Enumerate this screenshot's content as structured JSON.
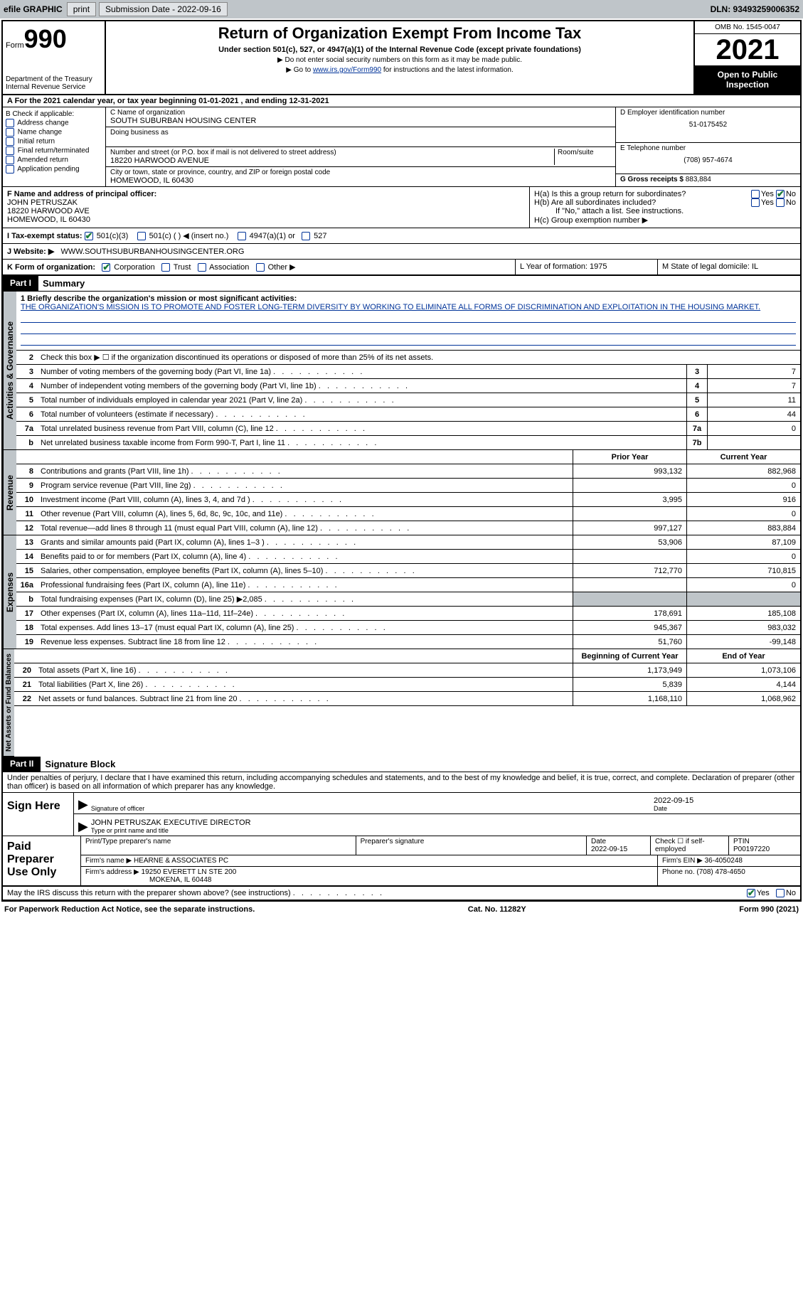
{
  "topbar": {
    "efile": "efile GRAPHIC",
    "print": "print",
    "sub_label": "Submission Date - 2022-09-16",
    "dln": "DLN: 93493259006352"
  },
  "header": {
    "form_label": "Form",
    "form_num": "990",
    "dept": "Department of the Treasury\nInternal Revenue Service",
    "title": "Return of Organization Exempt From Income Tax",
    "subtitle": "Under section 501(c), 527, or 4947(a)(1) of the Internal Revenue Code (except private foundations)",
    "note1": "▶ Do not enter social security numbers on this form as it may be made public.",
    "note2_pre": "▶ Go to ",
    "note2_link": "www.irs.gov/Form990",
    "note2_post": " for instructions and the latest information.",
    "omb": "OMB No. 1545-0047",
    "year": "2021",
    "inspection": "Open to Public Inspection"
  },
  "row_a": "A For the 2021 calendar year, or tax year beginning 01-01-2021   , and ending 12-31-2021",
  "col_b": {
    "label": "B Check if applicable:",
    "items": [
      "Address change",
      "Name change",
      "Initial return",
      "Final return/terminated",
      "Amended return",
      "Application pending"
    ]
  },
  "col_c": {
    "name_label": "C Name of organization",
    "name": "SOUTH SUBURBAN HOUSING CENTER",
    "dba_label": "Doing business as",
    "street_label": "Number and street (or P.O. box if mail is not delivered to street address)",
    "room_label": "Room/suite",
    "street": "18220 HARWOOD AVENUE",
    "city_label": "City or town, state or province, country, and ZIP or foreign postal code",
    "city": "HOMEWOOD, IL  60430"
  },
  "col_d": {
    "ein_label": "D Employer identification number",
    "ein": "51-0175452",
    "phone_label": "E Telephone number",
    "phone": "(708) 957-4674",
    "gross_label": "G Gross receipts $",
    "gross": "883,884"
  },
  "row_f": {
    "label": "F Name and address of principal officer:",
    "name": "JOHN PETRUSZAK",
    "addr1": "18220 HARWOOD AVE",
    "addr2": "HOMEWOOD, IL  60430"
  },
  "row_h": {
    "a": "H(a)  Is this a group return for subordinates?",
    "b": "H(b)  Are all subordinates included?",
    "b_note": "If \"No,\" attach a list. See instructions.",
    "c": "H(c)  Group exemption number ▶"
  },
  "row_i": {
    "label": "I   Tax-exempt status:",
    "opts": [
      "501(c)(3)",
      "501(c) (  ) ◀ (insert no.)",
      "4947(a)(1) or",
      "527"
    ]
  },
  "row_j": {
    "label": "J   Website: ▶",
    "val": "WWW.SOUTHSUBURBANHOUSINGCENTER.ORG"
  },
  "row_k": {
    "k1": "K Form of organization:",
    "opts": [
      "Corporation",
      "Trust",
      "Association",
      "Other ▶"
    ],
    "l": "L Year of formation: 1975",
    "m": "M State of legal domicile: IL"
  },
  "part1": {
    "label": "Part I",
    "title": "Summary",
    "tab_ag": "Activities & Governance",
    "tab_rev": "Revenue",
    "tab_exp": "Expenses",
    "tab_net": "Net Assets or Fund Balances",
    "line1_label": "1  Briefly describe the organization's mission or most significant activities:",
    "line1_text": "THE ORGANIZATION'S MISSION IS TO PROMOTE AND FOSTER LONG-TERM DIVERSITY BY WORKING TO ELIMINATE ALL FORMS OF DISCRIMINATION AND EXPLOITATION IN THE HOUSING MARKET.",
    "line2": "Check this box ▶ ☐ if the organization discontinued its operations or disposed of more than 25% of its net assets.",
    "lines_ag": [
      {
        "n": "3",
        "d": "Number of voting members of the governing body (Part VI, line 1a)",
        "b": "3",
        "v": "7"
      },
      {
        "n": "4",
        "d": "Number of independent voting members of the governing body (Part VI, line 1b)",
        "b": "4",
        "v": "7"
      },
      {
        "n": "5",
        "d": "Total number of individuals employed in calendar year 2021 (Part V, line 2a)",
        "b": "5",
        "v": "11"
      },
      {
        "n": "6",
        "d": "Total number of volunteers (estimate if necessary)",
        "b": "6",
        "v": "44"
      },
      {
        "n": "7a",
        "d": "Total unrelated business revenue from Part VIII, column (C), line 12",
        "b": "7a",
        "v": "0"
      },
      {
        "n": "b",
        "d": "Net unrelated business taxable income from Form 990-T, Part I, line 11",
        "b": "7b",
        "v": ""
      }
    ],
    "col_py": "Prior Year",
    "col_cy": "Current Year",
    "lines_rev": [
      {
        "n": "8",
        "d": "Contributions and grants (Part VIII, line 1h)",
        "py": "993,132",
        "cy": "882,968"
      },
      {
        "n": "9",
        "d": "Program service revenue (Part VIII, line 2g)",
        "py": "",
        "cy": "0"
      },
      {
        "n": "10",
        "d": "Investment income (Part VIII, column (A), lines 3, 4, and 7d )",
        "py": "3,995",
        "cy": "916"
      },
      {
        "n": "11",
        "d": "Other revenue (Part VIII, column (A), lines 5, 6d, 8c, 9c, 10c, and 11e)",
        "py": "",
        "cy": "0"
      },
      {
        "n": "12",
        "d": "Total revenue—add lines 8 through 11 (must equal Part VIII, column (A), line 12)",
        "py": "997,127",
        "cy": "883,884"
      }
    ],
    "lines_exp": [
      {
        "n": "13",
        "d": "Grants and similar amounts paid (Part IX, column (A), lines 1–3 )",
        "py": "53,906",
        "cy": "87,109"
      },
      {
        "n": "14",
        "d": "Benefits paid to or for members (Part IX, column (A), line 4)",
        "py": "",
        "cy": "0"
      },
      {
        "n": "15",
        "d": "Salaries, other compensation, employee benefits (Part IX, column (A), lines 5–10)",
        "py": "712,770",
        "cy": "710,815"
      },
      {
        "n": "16a",
        "d": "Professional fundraising fees (Part IX, column (A), line 11e)",
        "py": "",
        "cy": "0"
      },
      {
        "n": "b",
        "d": "Total fundraising expenses (Part IX, column (D), line 25) ▶2,085",
        "py": "shaded",
        "cy": "shaded"
      },
      {
        "n": "17",
        "d": "Other expenses (Part IX, column (A), lines 11a–11d, 11f–24e)",
        "py": "178,691",
        "cy": "185,108"
      },
      {
        "n": "18",
        "d": "Total expenses. Add lines 13–17 (must equal Part IX, column (A), line 25)",
        "py": "945,367",
        "cy": "983,032"
      },
      {
        "n": "19",
        "d": "Revenue less expenses. Subtract line 18 from line 12",
        "py": "51,760",
        "cy": "-99,148"
      }
    ],
    "col_by": "Beginning of Current Year",
    "col_ey": "End of Year",
    "lines_net": [
      {
        "n": "20",
        "d": "Total assets (Part X, line 16)",
        "py": "1,173,949",
        "cy": "1,073,106"
      },
      {
        "n": "21",
        "d": "Total liabilities (Part X, line 26)",
        "py": "5,839",
        "cy": "4,144"
      },
      {
        "n": "22",
        "d": "Net assets or fund balances. Subtract line 21 from line 20",
        "py": "1,168,110",
        "cy": "1,068,962"
      }
    ]
  },
  "part2": {
    "label": "Part II",
    "title": "Signature Block",
    "decl": "Under penalties of perjury, I declare that I have examined this return, including accompanying schedules and statements, and to the best of my knowledge and belief, it is true, correct, and complete. Declaration of preparer (other than officer) is based on all information of which preparer has any knowledge.",
    "sign_here": "Sign Here",
    "sig_officer": "Signature of officer",
    "sig_date": "2022-09-15",
    "sig_date_label": "Date",
    "sig_name": "JOHN PETRUSZAK  EXECUTIVE DIRECTOR",
    "sig_name_label": "Type or print name and title",
    "paid_label": "Paid Preparer Use Only",
    "pp_name_label": "Print/Type preparer's name",
    "pp_sig_label": "Preparer's signature",
    "pp_date_label": "Date",
    "pp_date": "2022-09-15",
    "pp_self": "Check ☐ if self-employed",
    "pp_ptin_label": "PTIN",
    "pp_ptin": "P00197220",
    "firm_name_label": "Firm's name    ▶",
    "firm_name": "HEARNE & ASSOCIATES PC",
    "firm_ein_label": "Firm's EIN ▶",
    "firm_ein": "36-4050248",
    "firm_addr_label": "Firm's address ▶",
    "firm_addr1": "19250 EVERETT LN STE 200",
    "firm_addr2": "MOKENA, IL  60448",
    "firm_phone_label": "Phone no.",
    "firm_phone": "(708) 478-4650",
    "discuss": "May the IRS discuss this return with the preparer shown above? (see instructions)",
    "footer_left": "For Paperwork Reduction Act Notice, see the separate instructions.",
    "footer_mid": "Cat. No. 11282Y",
    "footer_right": "Form 990 (2021)"
  }
}
